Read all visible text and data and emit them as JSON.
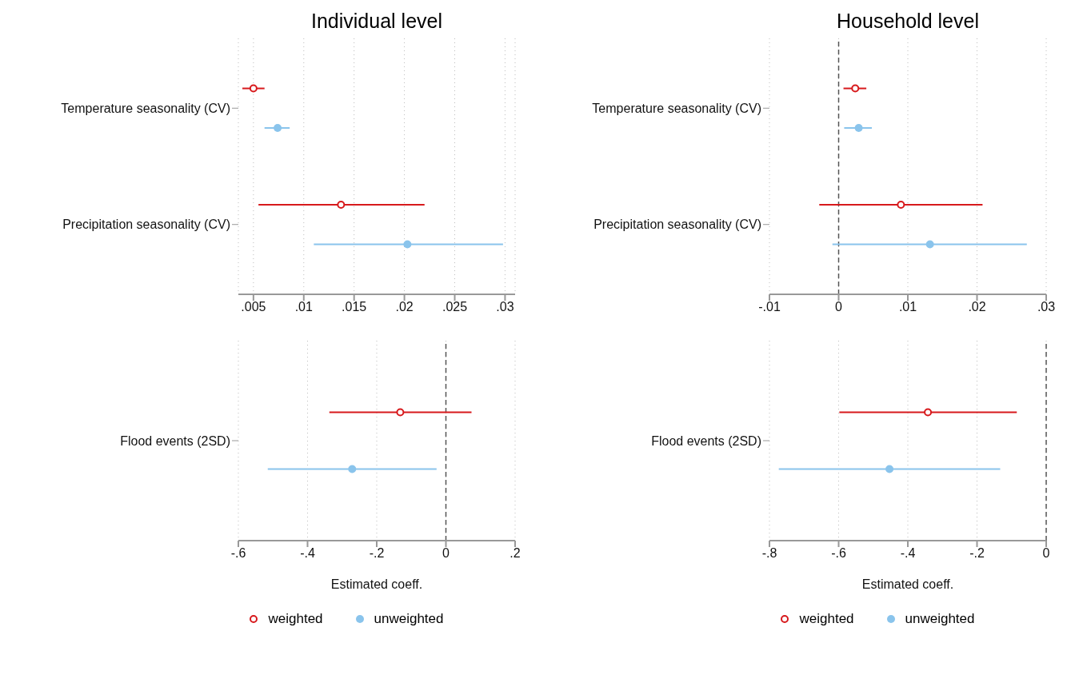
{
  "chart_data": [
    {
      "type": "scatter",
      "orientation": "horizontal",
      "title": "Individual level",
      "categories": [
        "Temperature seasonality (CV)",
        "Precipitation seasonality (CV)"
      ],
      "series": [
        {
          "color": "#d7191c",
          "values": [
            0.005,
            0.0137
          ],
          "errors": [
            [
              0.0039,
              0.0061
            ],
            [
              0.0055,
              0.022
            ]
          ]
        },
        {
          "color": "#8ac4ec",
          "values": [
            0.0074,
            0.0203
          ],
          "errors": [
            [
              0.0061,
              0.0086
            ],
            [
              0.011,
              0.0298
            ]
          ]
        }
      ],
      "xlim": [
        0.0035,
        0.031
      ],
      "xticks": [
        {
          "value": 0.005,
          "label": ".005"
        },
        {
          "value": 0.01,
          "label": ".01"
        },
        {
          "value": 0.015,
          "label": ".015"
        },
        {
          "value": 0.02,
          "label": ".02"
        },
        {
          "value": 0.025,
          "label": ".025"
        },
        {
          "value": 0.03,
          "label": ".03"
        }
      ],
      "grid": "x",
      "marker": "circle"
    },
    {
      "type": "scatter",
      "orientation": "horizontal",
      "title": "Household level",
      "categories": [
        "Temperature seasonality (CV)",
        "Precipitation seasonality (CV)"
      ],
      "series": [
        {
          "color": "#d7191c",
          "values": [
            0.0024,
            0.009
          ],
          "errors": [
            [
              0.0007,
              0.004
            ],
            [
              -0.0028,
              0.0208
            ]
          ]
        },
        {
          "color": "#8ac4ec",
          "values": [
            0.0029,
            0.0132
          ],
          "errors": [
            [
              0.0008,
              0.0048
            ],
            [
              -0.0009,
              0.0272
            ]
          ]
        }
      ],
      "xlim": [
        -0.01,
        0.03
      ],
      "xticks": [
        {
          "value": -0.01,
          "label": "-.01"
        },
        {
          "value": 0,
          "label": "0"
        },
        {
          "value": 0.01,
          "label": ".01"
        },
        {
          "value": 0.02,
          "label": ".02"
        },
        {
          "value": 0.03,
          "label": ".03"
        }
      ],
      "ref_lines": [
        {
          "axis": "x",
          "value": 0,
          "color": "#555555",
          "line_style": "dashed"
        }
      ],
      "grid": "x",
      "marker": "circle"
    },
    {
      "type": "scatter",
      "orientation": "horizontal",
      "xlabel": "Estimated coeff.",
      "categories": [
        "Flood events (2SD)"
      ],
      "series": [
        {
          "name": "weighted",
          "color": "#d7191c",
          "values": [
            -0.132
          ],
          "errors": [
            [
              -0.337,
              0.074
            ]
          ]
        },
        {
          "name": "unweighted",
          "color": "#8ac4ec",
          "values": [
            -0.271
          ],
          "errors": [
            [
              -0.515,
              -0.027
            ]
          ]
        }
      ],
      "xlim": [
        -0.6,
        0.2
      ],
      "xticks": [
        {
          "value": -0.6,
          "label": "-.6"
        },
        {
          "value": -0.4,
          "label": "-.4"
        },
        {
          "value": -0.2,
          "label": "-.2"
        },
        {
          "value": 0,
          "label": "0"
        },
        {
          "value": 0.2,
          "label": ".2"
        }
      ],
      "ref_lines": [
        {
          "axis": "x",
          "value": 0,
          "color": "#555555",
          "line_style": "dashed"
        }
      ],
      "grid": true,
      "marker": "circle",
      "legend": "bottom"
    },
    {
      "type": "scatter",
      "orientation": "horizontal",
      "xlabel": "Estimated coeff.",
      "categories": [
        "Flood events (2SD)"
      ],
      "series": [
        {
          "name": "weighted",
          "color": "#d7191c",
          "values": [
            -0.342
          ],
          "errors": [
            [
              -0.598,
              -0.085
            ]
          ]
        },
        {
          "name": "unweighted",
          "color": "#8ac4ec",
          "values": [
            -0.453
          ],
          "errors": [
            [
              -0.773,
              -0.133
            ]
          ]
        }
      ],
      "xlim": [
        -0.8,
        0
      ],
      "xticks": [
        {
          "value": -0.8,
          "label": "-.8"
        },
        {
          "value": -0.6,
          "label": "-.6"
        },
        {
          "value": -0.4,
          "label": "-.4"
        },
        {
          "value": -0.2,
          "label": "-.2"
        },
        {
          "value": 0,
          "label": "0"
        }
      ],
      "ref_lines": [
        {
          "axis": "x",
          "value": 0,
          "color": "#555555",
          "line_style": "dashed"
        }
      ],
      "grid": true,
      "marker": "circle",
      "legend": "bottom"
    }
  ]
}
